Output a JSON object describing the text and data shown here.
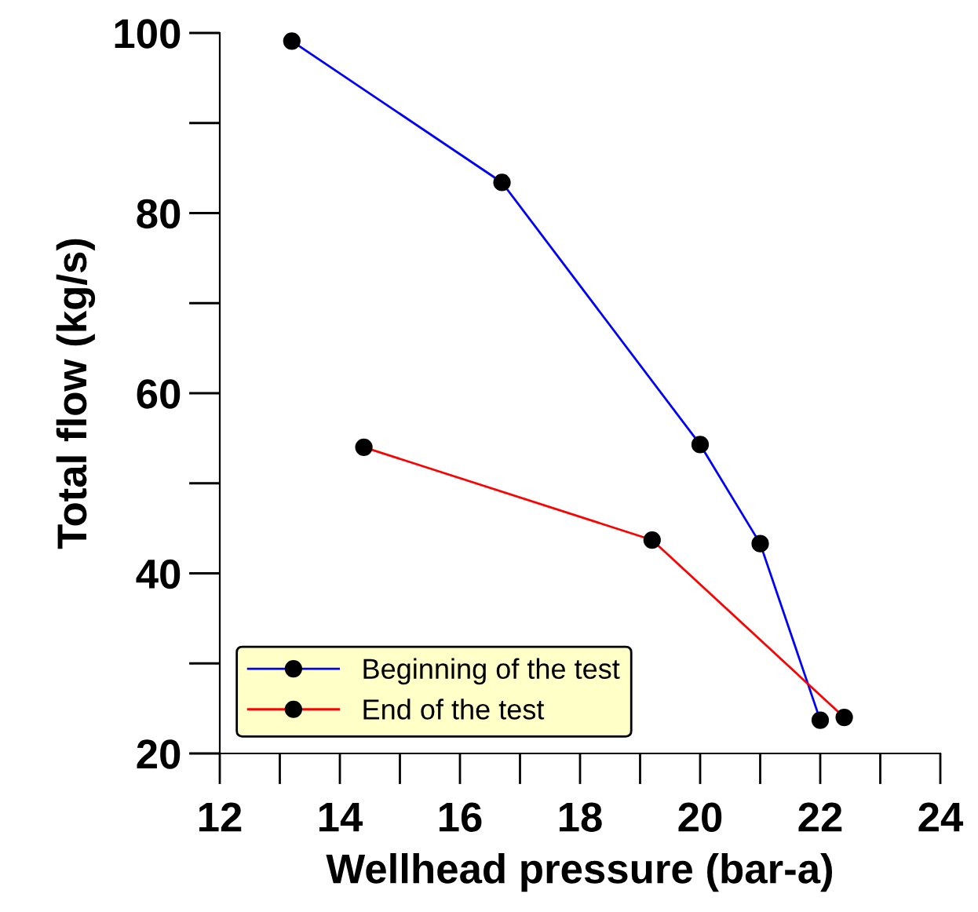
{
  "chart_data": {
    "type": "line",
    "xlabel": "Wellhead pressure (bar-a)",
    "ylabel": "Total flow (kg/s)",
    "series": [
      {
        "name": "Beginning of the test",
        "color": "#0000ff",
        "x": [
          13.2,
          16.7,
          20.0,
          21.0,
          22.0
        ],
        "values": [
          99.1,
          83.4,
          54.3,
          43.3,
          23.7
        ]
      },
      {
        "name": "End of the test",
        "color": "#ff0000",
        "x": [
          14.4,
          19.2,
          22.4
        ],
        "values": [
          54.0,
          43.7,
          24.0
        ]
      }
    ],
    "xlim": [
      12,
      24
    ],
    "xticks": [
      12,
      14,
      16,
      18,
      20,
      22,
      24
    ],
    "ylim": [
      20,
      100
    ],
    "yticks": [
      20,
      40,
      60,
      80,
      100
    ],
    "grid": false,
    "legend": "bottom left",
    "marker": "circle",
    "line_style": "solid"
  }
}
